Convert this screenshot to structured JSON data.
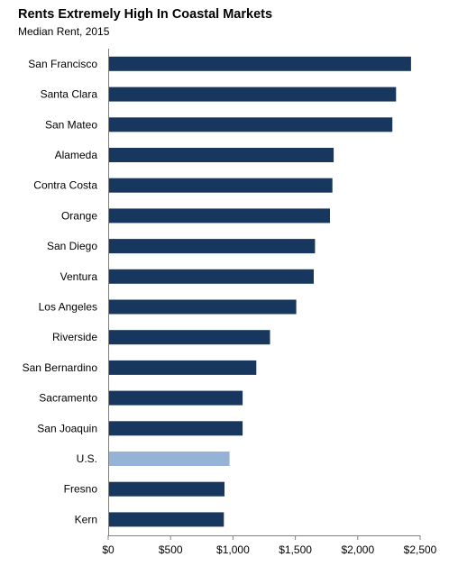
{
  "chart_data": {
    "type": "bar",
    "orientation": "horizontal",
    "title": "Rents Extremely High In Coastal Markets",
    "subtitle": "Median Rent, 2015",
    "xlabel": "",
    "ylabel": "",
    "xlim": [
      0,
      2500
    ],
    "x_ticks": [
      0,
      500,
      1000,
      1500,
      2000,
      2500
    ],
    "x_tick_labels": [
      "$0",
      "$500",
      "$1,000",
      "$1,500",
      "$2,000",
      "$2,500"
    ],
    "grid": false,
    "legend": "none",
    "categories": [
      "San Francisco",
      "Santa Clara",
      "San Mateo",
      "Alameda",
      "Contra Costa",
      "Orange",
      "San Diego",
      "Ventura",
      "Los Angeles",
      "Riverside",
      "San Bernardino",
      "Sacramento",
      "San Joaquin",
      "U.S.",
      "Fresno",
      "Kern"
    ],
    "values": [
      2420,
      2300,
      2270,
      1800,
      1790,
      1770,
      1650,
      1640,
      1500,
      1290,
      1180,
      1070,
      1070,
      965,
      925,
      920
    ],
    "highlight_category": "U.S.",
    "bar_color": "#17375E",
    "highlight_color": "#95B3D7"
  }
}
